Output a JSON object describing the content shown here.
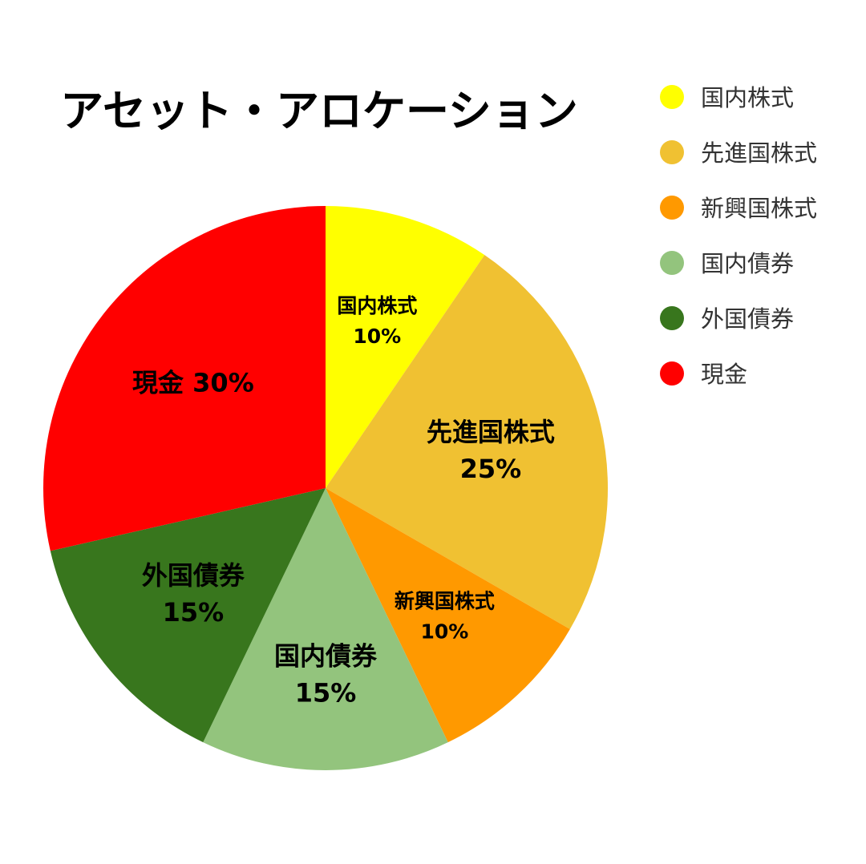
{
  "chart_data": {
    "type": "pie",
    "title": "アセット・アロケーション",
    "legend_position": "top-right",
    "slices": [
      {
        "label": "国内株式",
        "value": 10,
        "value_label": "10%",
        "color": "#FFFF00"
      },
      {
        "label": "先進国株式",
        "value": 25,
        "value_label": "25%",
        "color": "#F0C132"
      },
      {
        "label": "新興国株式",
        "value": 10,
        "value_label": "10%",
        "color": "#FF9900"
      },
      {
        "label": "国内債券",
        "value": 15,
        "value_label": "15%",
        "color": "#93C47D"
      },
      {
        "label": "外国債券",
        "value": 15,
        "value_label": "15%",
        "color": "#38761D"
      },
      {
        "label": "現金",
        "value": 30,
        "value_label": "30%",
        "color": "#FF0000"
      }
    ]
  }
}
